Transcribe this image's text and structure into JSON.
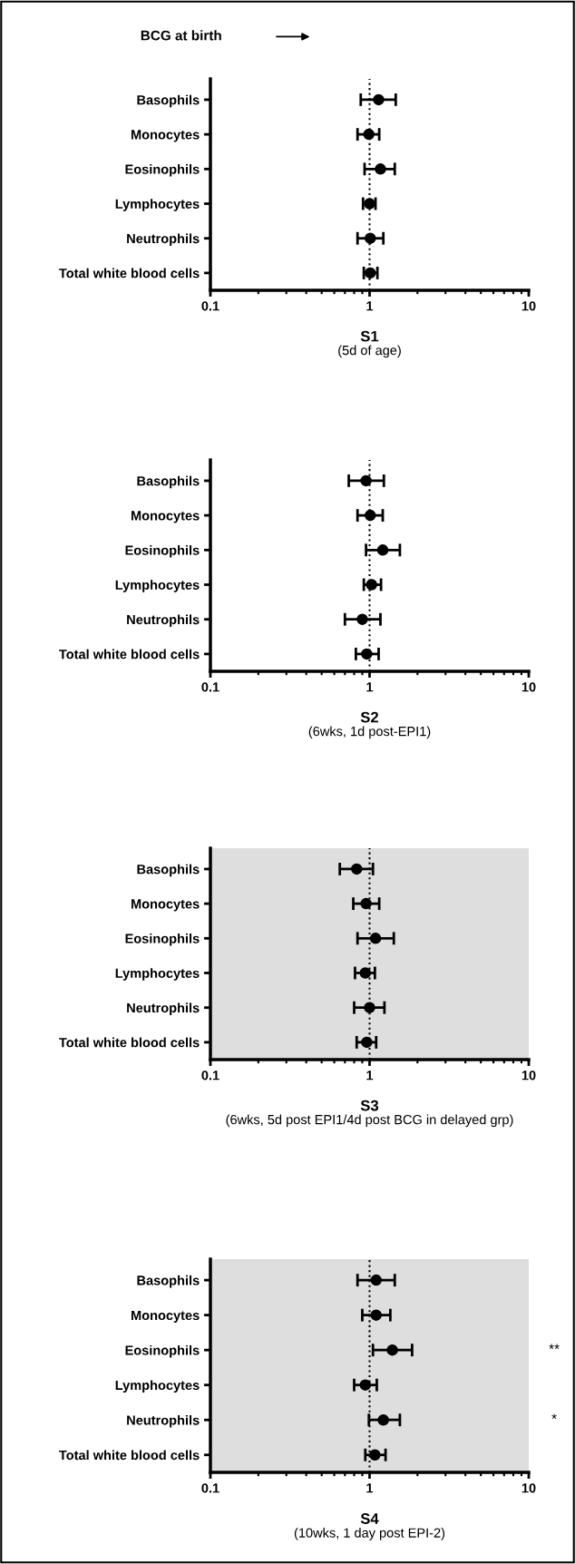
{
  "chart_data": [
    {
      "type": "scatter",
      "orientation": "horizontal",
      "title": "S1",
      "subtitle": "(5d of age)",
      "annotations": [
        "BCG at birth"
      ],
      "categories": [
        "Basophils",
        "Monocytes",
        "Eosinophils",
        "Lymphocytes",
        "Neutrophils",
        "Total white blood cells"
      ],
      "values": [
        1.14,
        0.99,
        1.17,
        1.0,
        1.01,
        1.01
      ],
      "errors": [
        [
          0.88,
          1.46
        ],
        [
          0.84,
          1.15
        ],
        [
          0.93,
          1.44
        ],
        [
          0.91,
          1.09
        ],
        [
          0.84,
          1.22
        ],
        [
          0.92,
          1.12
        ]
      ],
      "color": "#000000",
      "marker": "circle",
      "log": "x",
      "xlim": [
        0.1,
        10
      ],
      "xticks": [
        0.1,
        1,
        10
      ],
      "grid": false,
      "ref_lines": [
        {
          "axis": "x",
          "value": 1,
          "line_style": "dotted",
          "color": "#000000"
        }
      ]
    },
    {
      "type": "scatter",
      "orientation": "horizontal",
      "title": "S2",
      "subtitle": "(6wks, 1d post-EPI1)",
      "categories": [
        "Basophils",
        "Monocytes",
        "Eosinophils",
        "Lymphocytes",
        "Neutrophils",
        "Total white blood cells"
      ],
      "values": [
        0.95,
        1.01,
        1.21,
        1.03,
        0.9,
        0.96
      ],
      "errors": [
        [
          0.74,
          1.23
        ],
        [
          0.84,
          1.21
        ],
        [
          0.95,
          1.55
        ],
        [
          0.92,
          1.18
        ],
        [
          0.7,
          1.17
        ],
        [
          0.82,
          1.14
        ]
      ],
      "color": "#000000",
      "marker": "circle",
      "log": "x",
      "xlim": [
        0.1,
        10
      ],
      "xticks": [
        0.1,
        1,
        10
      ],
      "grid": false,
      "ref_lines": [
        {
          "axis": "x",
          "value": 1,
          "line_style": "dotted",
          "color": "#000000"
        }
      ]
    },
    {
      "type": "scatter",
      "orientation": "horizontal",
      "title": "S3",
      "subtitle": "(6wks, 5d post EPI1/4d post BCG in delayed grp)",
      "categories": [
        "Basophils",
        "Monocytes",
        "Eosinophils",
        "Lymphocytes",
        "Neutrophils",
        "Total white blood cells"
      ],
      "values": [
        0.83,
        0.95,
        1.09,
        0.94,
        1.0,
        0.96
      ],
      "errors": [
        [
          0.65,
          1.05
        ],
        [
          0.79,
          1.15
        ],
        [
          0.84,
          1.42
        ],
        [
          0.81,
          1.08
        ],
        [
          0.8,
          1.24
        ],
        [
          0.83,
          1.1
        ]
      ],
      "color": "#000000",
      "marker": "circle",
      "log": "x",
      "xlim": [
        0.1,
        10
      ],
      "xticks": [
        0.1,
        1,
        10
      ],
      "grid": false,
      "ref_lines": [
        {
          "axis": "x",
          "value": 1,
          "line_style": "dotted",
          "color": "#000000"
        }
      ],
      "bands": [
        {
          "axis": "x",
          "from": 0.1,
          "to": 10,
          "color": "#dedede"
        }
      ]
    },
    {
      "type": "scatter",
      "orientation": "horizontal",
      "title": "S4",
      "subtitle": "(10wks, 1 day post EPI-2)",
      "categories": [
        "Basophils",
        "Monocytes",
        "Eosinophils",
        "Lymphocytes",
        "Neutrophils",
        "Total white blood cells"
      ],
      "values": [
        1.1,
        1.1,
        1.39,
        0.94,
        1.22,
        1.08
      ],
      "errors": [
        [
          0.84,
          1.44
        ],
        [
          0.9,
          1.35
        ],
        [
          1.05,
          1.85
        ],
        [
          0.8,
          1.11
        ],
        [
          0.99,
          1.55
        ],
        [
          0.94,
          1.26
        ]
      ],
      "color": "#000000",
      "marker": "circle",
      "log": "x",
      "xlim": [
        0.1,
        10
      ],
      "xticks": [
        0.1,
        1,
        10
      ],
      "grid": false,
      "ref_lines": [
        {
          "axis": "x",
          "value": 1,
          "line_style": "dotted",
          "color": "#000000"
        }
      ],
      "bands": [
        {
          "axis": "x",
          "from": 0.1,
          "to": 10,
          "color": "#dedede"
        }
      ],
      "annotations": [
        "**",
        "*"
      ]
    }
  ]
}
